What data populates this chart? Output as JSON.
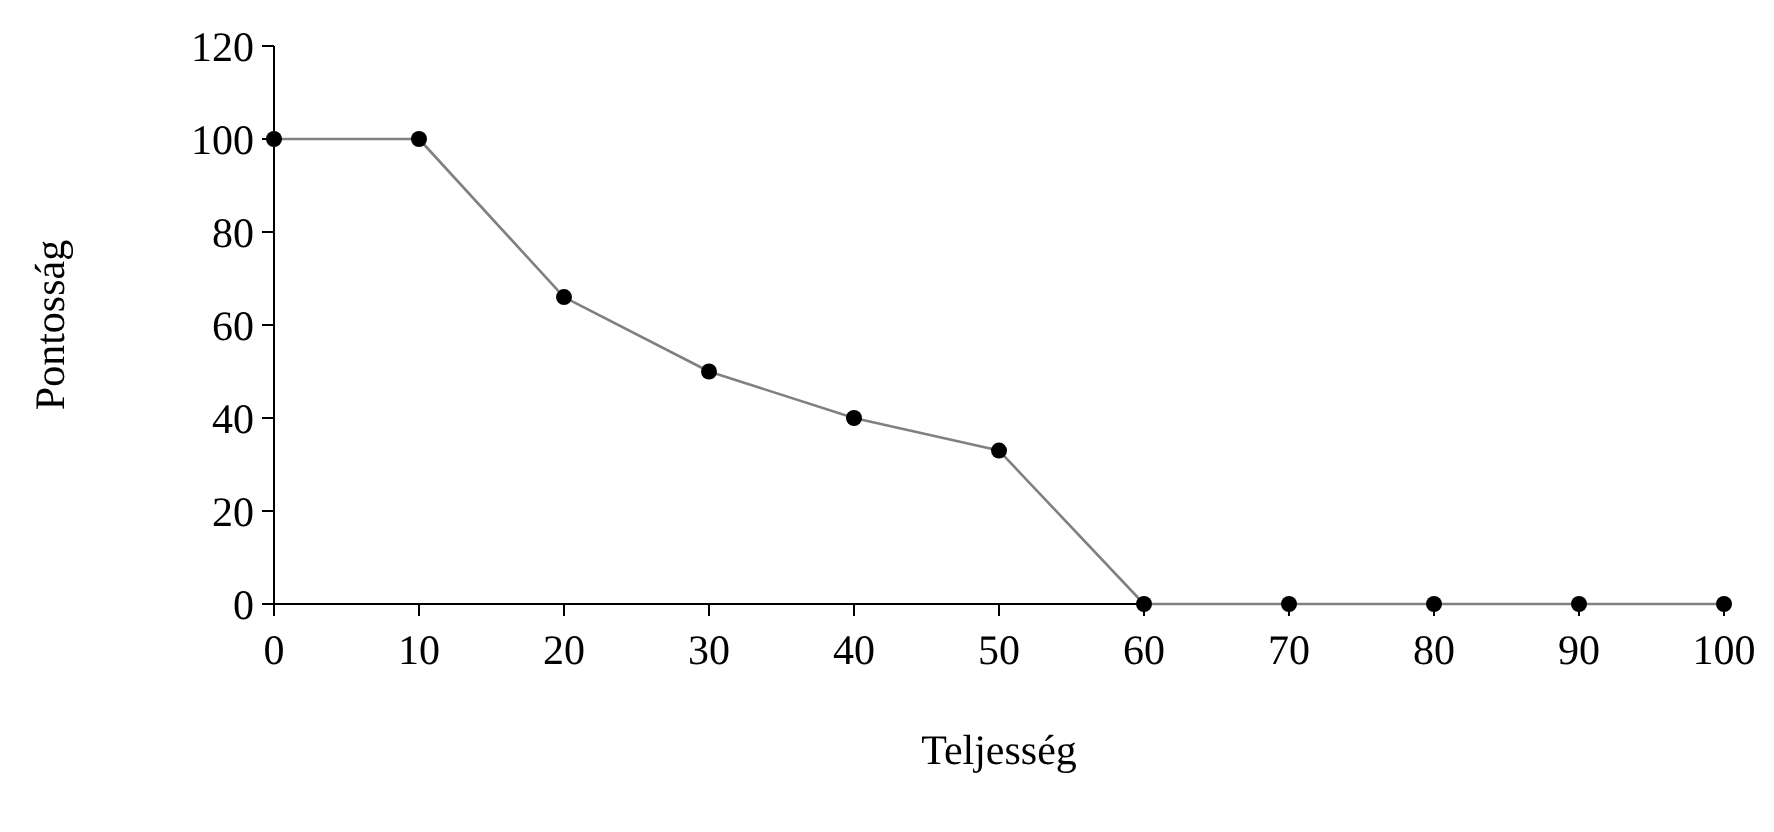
{
  "chart_data": {
    "type": "line",
    "xlabel": "Teljesség",
    "ylabel": "Pontosság",
    "x": [
      0,
      10,
      20,
      30,
      40,
      50,
      60,
      70,
      80,
      90,
      100
    ],
    "series": [
      {
        "color": "#808080",
        "values": [
          100,
          100,
          66,
          50,
          40,
          33,
          0,
          0,
          0,
          0,
          0
        ]
      }
    ],
    "xlim": [
      0,
      100
    ],
    "xticks": [
      0,
      10,
      20,
      30,
      40,
      50,
      60,
      70,
      80,
      90,
      100
    ],
    "ylim": [
      0,
      120
    ],
    "yticks": [
      0,
      20,
      40,
      60,
      80,
      100,
      120
    ],
    "grid": false,
    "marker": "circle",
    "line_style": "solid"
  }
}
